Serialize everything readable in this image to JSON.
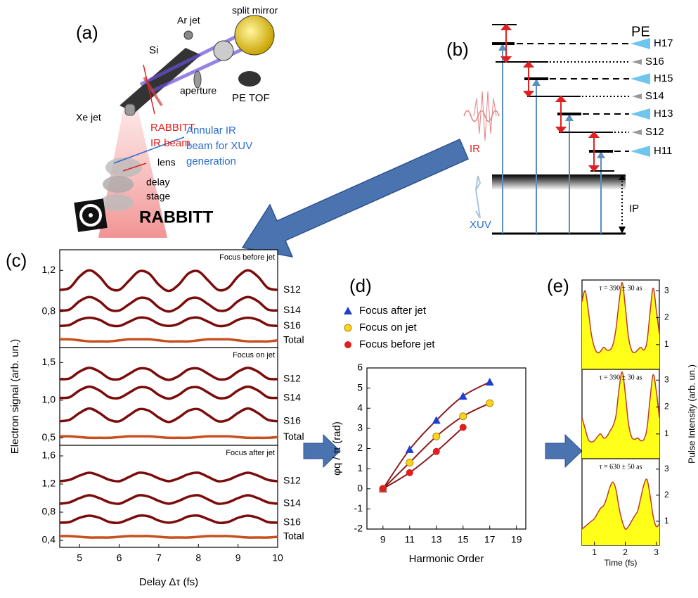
{
  "figure": {
    "panel_labels": [
      "(a)",
      "(b)",
      "(c)",
      "(d)",
      "(e)"
    ]
  },
  "apparatus": {
    "si": "Si",
    "ar_jet": "Ar jet",
    "split_mirror": "split mirror",
    "aperture": "aperture",
    "pe_tof": "PE TOF",
    "xe_jet": "Xe jet",
    "rabbitt_beam": [
      "RABBITT",
      "IR beam"
    ],
    "lens": "lens",
    "annular_beam": [
      "Annular IR",
      "beam for XUV",
      "generation"
    ],
    "delay_stage": [
      "delay",
      "stage"
    ],
    "rabbitt": "RABBITT"
  },
  "energy_diagram": {
    "pe": "PE",
    "ir": "IR",
    "xuv": "XUV",
    "ip": "IP",
    "peaks": [
      "H17",
      "S16",
      "H15",
      "S14",
      "H13",
      "S12",
      "H11"
    ]
  },
  "chart_data": [
    {
      "type": "line",
      "title": "Focus before jet",
      "legend": "right",
      "x": [
        4.5,
        4.75,
        5,
        5.25,
        5.5,
        5.75,
        6,
        6.25,
        6.5,
        6.75,
        7,
        7.25,
        7.5,
        7.75,
        8,
        8.25,
        8.5,
        8.75,
        9,
        9.25,
        9.5,
        9.75,
        10
      ],
      "xlim": [
        4.5,
        10
      ],
      "ylim": [
        0.45,
        1.4
      ],
      "yticks": [
        {
          "value": 0.8,
          "label": "0,8"
        },
        {
          "value": 1.2,
          "label": "1,2"
        }
      ],
      "series": [
        {
          "name": "S12",
          "color": "#7b0c0c",
          "values": [
            1.01,
            1.03,
            1.14,
            1.2,
            1.14,
            1.03,
            1.01,
            1.1,
            1.19,
            1.17,
            1.06,
            1.0,
            1.06,
            1.17,
            1.19,
            1.1,
            1.01,
            1.03,
            1.14,
            1.2,
            1.14,
            1.03,
            1.01
          ]
        },
        {
          "name": "S14",
          "color": "#7b0c0c",
          "values": [
            0.81,
            0.82,
            0.9,
            0.94,
            0.9,
            0.82,
            0.81,
            0.87,
            0.93,
            0.92,
            0.84,
            0.8,
            0.84,
            0.92,
            0.93,
            0.87,
            0.81,
            0.82,
            0.9,
            0.94,
            0.9,
            0.82,
            0.81
          ]
        },
        {
          "name": "S16",
          "color": "#7b0c0c",
          "values": [
            0.66,
            0.67,
            0.72,
            0.74,
            0.72,
            0.67,
            0.66,
            0.7,
            0.74,
            0.73,
            0.68,
            0.66,
            0.68,
            0.73,
            0.74,
            0.7,
            0.66,
            0.67,
            0.72,
            0.74,
            0.72,
            0.67,
            0.66
          ]
        },
        {
          "name": "Total",
          "color": "#c8501e",
          "values": [
            0.53,
            0.53,
            0.52,
            0.51,
            0.51,
            0.51,
            0.52,
            0.53,
            0.53,
            0.53,
            0.52,
            0.51,
            0.51,
            0.51,
            0.52,
            0.53,
            0.53,
            0.53,
            0.52,
            0.51,
            0.51,
            0.51,
            0.52
          ]
        }
      ]
    },
    {
      "type": "line",
      "title": "Focus on jet",
      "legend": "right",
      "ylabel": "Electron signal (arb. un.)",
      "x": [
        4.5,
        4.75,
        5,
        5.25,
        5.5,
        5.75,
        6,
        6.25,
        6.5,
        6.75,
        7,
        7.25,
        7.5,
        7.75,
        8,
        8.25,
        8.5,
        8.75,
        9,
        9.25,
        9.5,
        9.75,
        10
      ],
      "xlim": [
        4.5,
        10
      ],
      "ylim": [
        0.4,
        1.7
      ],
      "yticks": [
        {
          "value": 0.5,
          "label": "0,5"
        },
        {
          "value": 1.0,
          "label": "1,0"
        },
        {
          "value": 1.5,
          "label": "1,5"
        }
      ],
      "series": [
        {
          "name": "S12",
          "color": "#7b0c0c",
          "values": [
            1.28,
            1.29,
            1.38,
            1.43,
            1.38,
            1.29,
            1.28,
            1.35,
            1.42,
            1.41,
            1.32,
            1.27,
            1.32,
            1.41,
            1.42,
            1.35,
            1.28,
            1.29,
            1.38,
            1.43,
            1.38,
            1.29,
            1.28
          ]
        },
        {
          "name": "S14",
          "color": "#7b0c0c",
          "values": [
            1.03,
            1.04,
            1.13,
            1.18,
            1.13,
            1.04,
            1.03,
            1.1,
            1.17,
            1.16,
            1.07,
            1.02,
            1.07,
            1.16,
            1.17,
            1.1,
            1.03,
            1.04,
            1.13,
            1.18,
            1.13,
            1.04,
            1.03
          ]
        },
        {
          "name": "S16",
          "color": "#7b0c0c",
          "values": [
            0.72,
            0.74,
            0.83,
            0.89,
            0.83,
            0.74,
            0.72,
            0.8,
            0.88,
            0.86,
            0.77,
            0.71,
            0.77,
            0.86,
            0.88,
            0.8,
            0.72,
            0.74,
            0.83,
            0.89,
            0.83,
            0.74,
            0.72
          ]
        },
        {
          "name": "Total",
          "color": "#c8501e",
          "values": [
            0.52,
            0.52,
            0.51,
            0.5,
            0.5,
            0.5,
            0.51,
            0.52,
            0.52,
            0.52,
            0.51,
            0.5,
            0.5,
            0.5,
            0.51,
            0.52,
            0.52,
            0.52,
            0.51,
            0.5,
            0.5,
            0.5,
            0.51
          ]
        }
      ]
    },
    {
      "type": "line",
      "title": "Focus after jet",
      "legend": "right",
      "xlabel": "Delay Δτ (fs)",
      "x": [
        4.5,
        4.75,
        5,
        5.25,
        5.5,
        5.75,
        6,
        6.25,
        6.5,
        6.75,
        7,
        7.25,
        7.5,
        7.75,
        8,
        8.25,
        8.5,
        8.75,
        9,
        9.25,
        9.5,
        9.75,
        10
      ],
      "xlim": [
        4.5,
        10
      ],
      "xticks": [
        5,
        6,
        7,
        8,
        9,
        10
      ],
      "ylim": [
        0.3,
        1.75
      ],
      "yticks": [
        {
          "value": 0.4,
          "label": "0,4"
        },
        {
          "value": 0.8,
          "label": "0,8"
        },
        {
          "value": 1.2,
          "label": "1,2"
        },
        {
          "value": 1.6,
          "label": "1,6"
        }
      ],
      "series": [
        {
          "name": "S12",
          "color": "#7b0c0c",
          "values": [
            1.24,
            1.26,
            1.32,
            1.36,
            1.32,
            1.26,
            1.24,
            1.3,
            1.36,
            1.34,
            1.28,
            1.24,
            1.28,
            1.34,
            1.36,
            1.3,
            1.24,
            1.26,
            1.32,
            1.36,
            1.32,
            1.26,
            1.24
          ]
        },
        {
          "name": "S14",
          "color": "#7b0c0c",
          "values": [
            0.92,
            0.94,
            1.0,
            1.04,
            1.0,
            0.94,
            0.92,
            0.98,
            1.04,
            1.02,
            0.96,
            0.92,
            0.96,
            1.02,
            1.04,
            0.98,
            0.92,
            0.94,
            1.0,
            1.04,
            1.0,
            0.94,
            0.92
          ]
        },
        {
          "name": "S16",
          "color": "#7b0c0c",
          "values": [
            0.65,
            0.66,
            0.72,
            0.75,
            0.72,
            0.66,
            0.65,
            0.7,
            0.75,
            0.74,
            0.68,
            0.65,
            0.68,
            0.74,
            0.75,
            0.7,
            0.65,
            0.66,
            0.72,
            0.75,
            0.72,
            0.66,
            0.65
          ]
        },
        {
          "name": "Total",
          "color": "#c8501e",
          "values": [
            0.46,
            0.46,
            0.45,
            0.44,
            0.44,
            0.44,
            0.45,
            0.46,
            0.46,
            0.46,
            0.45,
            0.44,
            0.44,
            0.44,
            0.45,
            0.46,
            0.46,
            0.46,
            0.45,
            0.44,
            0.44,
            0.44,
            0.45
          ]
        }
      ]
    },
    {
      "type": "line",
      "legend": "top-left-outside",
      "fit_color": "#8b1a1a",
      "xlabel": "Harmonic Order",
      "ylabel": "φq / π (rad)",
      "x": [
        9,
        11,
        13,
        15,
        17
      ],
      "xlim": [
        7.8,
        19.7
      ],
      "xticks": [
        9,
        11,
        13,
        15,
        17,
        19
      ],
      "ylim": [
        -2,
        6
      ],
      "yticks": [
        -2,
        -1,
        0,
        1,
        2,
        3,
        4,
        5,
        6
      ],
      "series": [
        {
          "name": "Focus after jet",
          "color": "#1f3fd0",
          "marker": "triangle",
          "values": [
            0,
            1.95,
            3.4,
            4.6,
            5.3
          ]
        },
        {
          "name": "Focus on jet",
          "color": "#ffd21f",
          "marker": "circle",
          "values": [
            0,
            1.3,
            2.6,
            3.6,
            4.25
          ]
        },
        {
          "name": "Focus before jet",
          "color": "#e0201e",
          "marker": "circle",
          "values": [
            0,
            0.8,
            1.85,
            3.05,
            null
          ]
        }
      ]
    },
    {
      "type": "area",
      "title": "τ = 390 ± 30 as",
      "color": "#ffff1a",
      "line_color": "#c0392b",
      "y_axis_side": "right",
      "x": [
        0.6,
        0.7,
        0.8,
        0.9,
        1.0,
        1.1,
        1.2,
        1.3,
        1.4,
        1.5,
        1.6,
        1.7,
        1.8,
        1.9,
        2.0,
        2.1,
        2.2,
        2.3,
        2.4,
        2.5,
        2.6,
        2.7,
        2.8,
        2.9,
        3.0,
        3.1
      ],
      "values": [
        2.6,
        3.0,
        2.3,
        1.4,
        0.9,
        0.7,
        0.75,
        0.9,
        0.8,
        0.8,
        1.0,
        1.6,
        2.6,
        3.3,
        2.4,
        1.3,
        0.8,
        0.7,
        0.8,
        0.9,
        0.8,
        1.1,
        2.2,
        3.1,
        2.3,
        1.4
      ],
      "xlim": [
        0.6,
        3.1
      ],
      "ylim": [
        0.08,
        3.4
      ],
      "yticks": [
        1,
        2,
        3
      ]
    },
    {
      "type": "area",
      "title": "τ = 390 ± 30 as",
      "color": "#ffff1a",
      "line_color": "#c0392b",
      "y_axis_side": "right",
      "ylabel": "Pulse Intensity (arb. un.)",
      "x": [
        0.6,
        0.7,
        0.8,
        0.9,
        1.0,
        1.1,
        1.2,
        1.3,
        1.4,
        1.5,
        1.6,
        1.7,
        1.8,
        1.9,
        2.0,
        2.1,
        2.2,
        2.3,
        2.4,
        2.5,
        2.6,
        2.7,
        2.8,
        2.9,
        3.0,
        3.1
      ],
      "values": [
        1.6,
        1.2,
        0.8,
        0.7,
        0.75,
        0.9,
        1.0,
        0.85,
        0.9,
        1.1,
        1.3,
        1.7,
        2.7,
        3.3,
        2.5,
        1.4,
        0.9,
        0.8,
        0.85,
        0.75,
        0.8,
        1.2,
        2.3,
        3.2,
        2.6,
        1.6
      ],
      "xlim": [
        0.6,
        3.1
      ],
      "ylim": [
        0.08,
        3.4
      ],
      "yticks": [
        1,
        2,
        3
      ]
    },
    {
      "type": "area",
      "title": "τ = 630 ± 50 as",
      "color": "#ffff1a",
      "line_color": "#c0392b",
      "y_axis_side": "right",
      "xlabel": "Time (fs)",
      "x": [
        0.6,
        0.7,
        0.8,
        0.9,
        1.0,
        1.1,
        1.2,
        1.3,
        1.4,
        1.5,
        1.6,
        1.7,
        1.8,
        1.9,
        2.0,
        2.1,
        2.2,
        2.3,
        2.4,
        2.5,
        2.6,
        2.7,
        2.8,
        2.9,
        3.0,
        3.1
      ],
      "values": [
        0.7,
        0.8,
        0.9,
        1.0,
        1.1,
        1.3,
        1.5,
        1.6,
        1.9,
        2.3,
        2.5,
        2.2,
        1.5,
        1.0,
        0.7,
        0.8,
        1.0,
        1.2,
        1.4,
        1.9,
        2.4,
        2.6,
        2.0,
        1.2,
        0.8,
        0.9
      ],
      "xlim": [
        0.6,
        3.1
      ],
      "xticks": [
        1,
        2,
        3
      ],
      "ylim": [
        0.08,
        3.4
      ],
      "yticks": [
        1,
        2,
        3
      ]
    }
  ]
}
